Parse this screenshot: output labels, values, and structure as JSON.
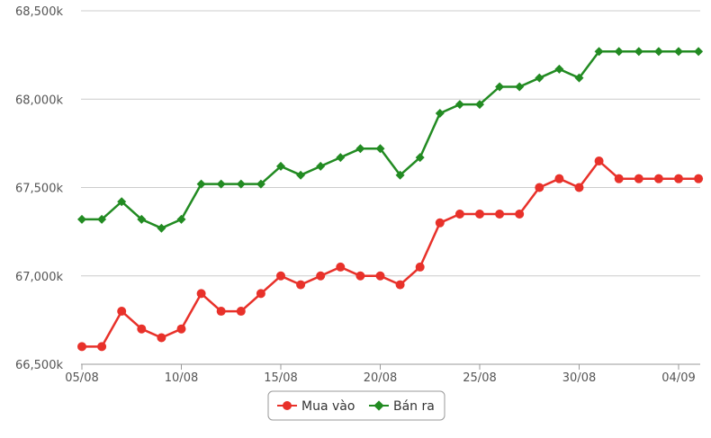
{
  "chart_data": {
    "type": "line",
    "title": "",
    "xlabel": "",
    "ylabel": "",
    "x": [
      "05/08",
      "06/08",
      "07/08",
      "08/08",
      "09/08",
      "10/08",
      "11/08",
      "12/08",
      "13/08",
      "14/08",
      "15/08",
      "16/08",
      "17/08",
      "18/08",
      "19/08",
      "20/08",
      "21/08",
      "22/08",
      "23/08",
      "24/08",
      "25/08",
      "26/08",
      "27/08",
      "28/08",
      "29/08",
      "30/08",
      "31/08",
      "01/09",
      "02/09",
      "03/09",
      "04/09",
      "05/09"
    ],
    "x_tick_labels": [
      "05/08",
      "10/08",
      "15/08",
      "20/08",
      "25/08",
      "30/08",
      "04/09"
    ],
    "y_tick_labels": [
      "66,500k",
      "67,000k",
      "67,500k",
      "68,000k",
      "68,500k"
    ],
    "y_ticks": [
      66500,
      67000,
      67500,
      68000,
      68500
    ],
    "ylim": [
      66500,
      68500
    ],
    "grid": "horizontal",
    "legend_position": "bottom-center",
    "series": [
      {
        "name": "Mua vào",
        "color": "#e8312a",
        "marker": "circle",
        "values": [
          66600,
          66600,
          66800,
          66700,
          66650,
          66700,
          66900,
          66800,
          66800,
          66900,
          67000,
          66950,
          67000,
          67050,
          67000,
          67000,
          66950,
          67050,
          67300,
          67350,
          67350,
          67350,
          67350,
          67500,
          67550,
          67500,
          67650,
          67550,
          67550,
          67550,
          67550,
          67550
        ]
      },
      {
        "name": "Bán ra",
        "color": "#228b22",
        "marker": "diamond",
        "values": [
          67320,
          67320,
          67420,
          67320,
          67270,
          67320,
          67520,
          67520,
          67520,
          67520,
          67620,
          67570,
          67620,
          67670,
          67720,
          67720,
          67570,
          67670,
          67920,
          67970,
          67970,
          68070,
          68070,
          68120,
          68170,
          68120,
          68270,
          68270,
          68270,
          68270,
          68270,
          68270
        ]
      }
    ]
  },
  "colors": {
    "grid": "#cccccc",
    "axis": "#999999",
    "tick_text": "#555555",
    "legend_border": "#999999"
  }
}
